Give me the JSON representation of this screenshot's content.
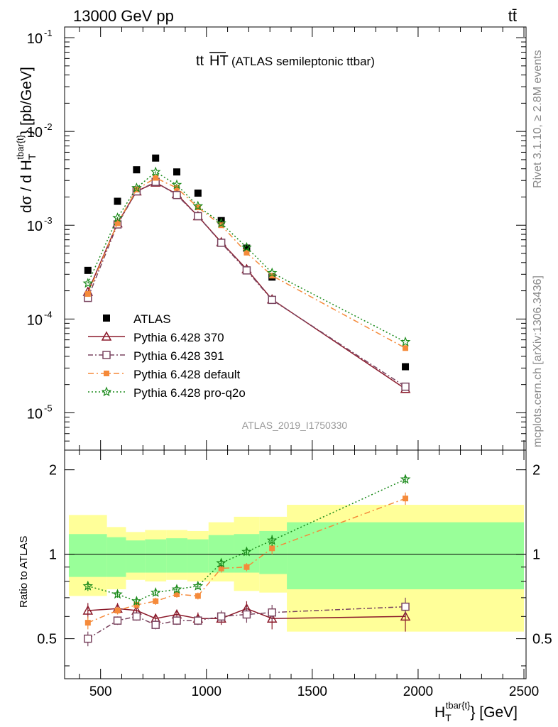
{
  "header": {
    "energy_label": "13000 GeV pp",
    "process_label": "tt̄",
    "plot_title_main": "tt",
    "plot_title_over": "HT",
    "plot_title_rest": "(ATLAS semileptonic ttbar)",
    "analysis_id": "ATLAS_2019_I1750330",
    "side_rivet": "Rivet 3.1.10, ≥ 2.8M events",
    "side_mcplots": "mcplots.cern.ch [arXiv:1306.3436]"
  },
  "axes": {
    "ylabel_main_pre": "dσ / d H",
    "ylabel_main_sub": "T",
    "ylabel_main_sup": "tbar{t}",
    "ylabel_main_post": "} [pb/GeV]",
    "ylabel_ratio": "Ratio to ATLAS",
    "xlabel_pre": "H",
    "xlabel_sub": "T",
    "xlabel_sup": "tbar{t}",
    "xlabel_post": "} [GeV]",
    "x_ticks": [
      "500",
      "1000",
      "1500",
      "2000",
      "2500"
    ],
    "ratio_ticks": [
      "0.5",
      "1",
      "2"
    ]
  },
  "colors": {
    "atlas": "#000000",
    "p370": "#8b1a2b",
    "p391": "#7a4560",
    "default": "#f58a3a",
    "proq2o": "#1a8a1a",
    "band_yellow": "#ffff99",
    "band_green": "#99ff99"
  },
  "chart_data": {
    "type": "scatter",
    "x": [
      440,
      580,
      670,
      760,
      860,
      960,
      1070,
      1190,
      1310,
      1940
    ],
    "xlim": [
      330,
      2510
    ],
    "main_ylim": [
      4e-06,
      0.13
    ],
    "main_log": true,
    "main_ticks": [
      {
        "value": 1e-05,
        "label": "10",
        "exp": "-5"
      },
      {
        "value": 0.0001,
        "label": "10",
        "exp": "-4"
      },
      {
        "value": 0.001,
        "label": "10",
        "exp": "-3"
      },
      {
        "value": 0.01,
        "label": "10",
        "exp": "-2"
      },
      {
        "value": 0.1,
        "label": "10",
        "exp": "-1"
      }
    ],
    "ratio_ylim": [
      0.36,
      2.35
    ],
    "ratio_log": true,
    "series": [
      {
        "key": "atlas",
        "name": "ATLAS",
        "marker": "square",
        "values": [
          0.00033,
          0.0018,
          0.0039,
          0.0052,
          0.0037,
          0.0022,
          0.00112,
          0.00057,
          0.00028,
          3.1e-05
        ]
      },
      {
        "key": "p370",
        "name": "Pythia 6.428 370",
        "marker": "triangle-open",
        "dash": "",
        "values": [
          0.000195,
          0.00105,
          0.0023,
          0.00285,
          0.00215,
          0.00125,
          0.00066,
          0.00034,
          0.000162,
          1.8e-05
        ],
        "ratio": [
          0.63,
          0.64,
          0.63,
          0.59,
          0.61,
          0.59,
          0.59,
          0.64,
          0.59,
          0.6
        ],
        "ratio_err": [
          0.04,
          0.03,
          0.02,
          0.02,
          0.02,
          0.03,
          0.03,
          0.04,
          0.05,
          0.07
        ]
      },
      {
        "key": "p391",
        "name": "Pythia 6.428 391",
        "marker": "square-open",
        "dash": "7,3,2,3",
        "values": [
          0.000168,
          0.00102,
          0.0023,
          0.0029,
          0.0021,
          0.00125,
          0.00065,
          0.00033,
          0.00016,
          1.9e-05
        ],
        "ratio": [
          0.5,
          0.58,
          0.6,
          0.56,
          0.58,
          0.58,
          0.6,
          0.61,
          0.62,
          0.65
        ],
        "ratio_err": [
          0.03,
          0.02,
          0.02,
          0.02,
          0.02,
          0.02,
          0.03,
          0.04,
          0.04,
          0.05
        ]
      },
      {
        "key": "default",
        "name": "Pythia 6.428 default",
        "marker": "square-filled",
        "dash": "8,4,2,4",
        "values": [
          0.000185,
          0.00105,
          0.0024,
          0.0032,
          0.0025,
          0.00155,
          0.001,
          0.00051,
          0.00029,
          4.9e-05
        ],
        "ratio": [
          0.57,
          0.63,
          0.66,
          0.68,
          0.72,
          0.71,
          0.89,
          0.9,
          1.05,
          1.58
        ],
        "ratio_err": [
          0.03,
          0.02,
          0.02,
          0.02,
          0.02,
          0.02,
          0.03,
          0.03,
          0.05,
          0.08
        ]
      },
      {
        "key": "proq2o",
        "name": "Pythia 6.428 pro-q2o",
        "marker": "star",
        "dash": "2,3",
        "values": [
          0.00024,
          0.0012,
          0.0025,
          0.0037,
          0.0027,
          0.0016,
          0.00105,
          0.00058,
          0.00031,
          5.7e-05
        ],
        "ratio": [
          0.77,
          0.72,
          0.68,
          0.73,
          0.75,
          0.77,
          0.93,
          1.02,
          1.12,
          1.85
        ],
        "ratio_err": [
          0.03,
          0.02,
          0.02,
          0.02,
          0.02,
          0.02,
          0.03,
          0.03,
          0.05,
          0.07
        ]
      }
    ],
    "bands": {
      "edges": [
        350,
        530,
        620,
        710,
        810,
        910,
        1010,
        1130,
        1250,
        1380,
        2500
      ],
      "green": [
        [
          0.83,
          1.18
        ],
        [
          0.83,
          1.15
        ],
        [
          0.86,
          1.12
        ],
        [
          0.86,
          1.13
        ],
        [
          0.86,
          1.14
        ],
        [
          0.86,
          1.13
        ],
        [
          0.86,
          1.17
        ],
        [
          0.86,
          1.18
        ],
        [
          0.85,
          1.21
        ],
        [
          0.75,
          1.3
        ]
      ],
      "yellow": [
        [
          0.71,
          1.38
        ],
        [
          0.75,
          1.25
        ],
        [
          0.81,
          1.2
        ],
        [
          0.8,
          1.22
        ],
        [
          0.81,
          1.22
        ],
        [
          0.8,
          1.21
        ],
        [
          0.8,
          1.3
        ],
        [
          0.74,
          1.36
        ],
        [
          0.73,
          1.36
        ],
        [
          0.53,
          1.5
        ]
      ]
    }
  }
}
